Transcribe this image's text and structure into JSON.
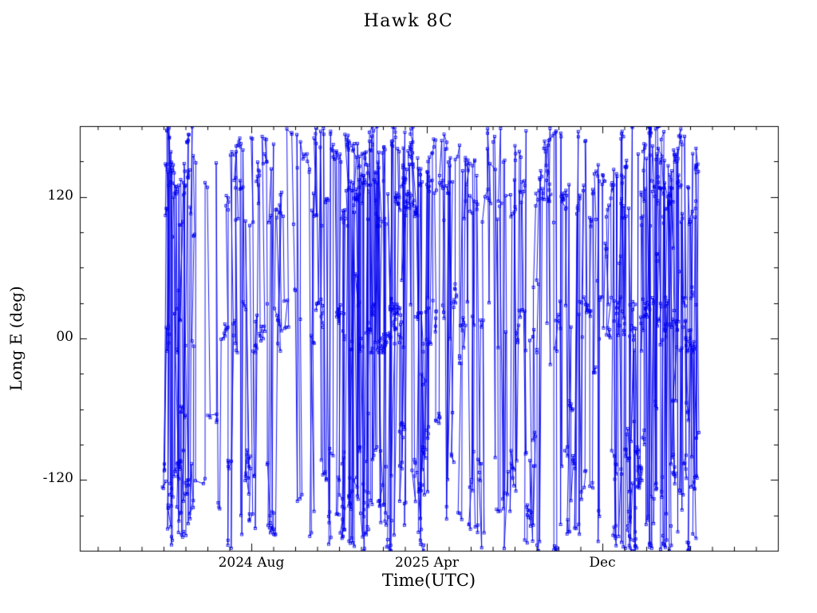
{
  "chart_data": {
    "type": "line",
    "title": "Hawk 8C",
    "xlabel": "Time(UTC)",
    "ylabel": "Long E (deg)",
    "x_tick_labels": [
      "2024 Aug",
      "2025 Apr",
      "Dec"
    ],
    "y_tick_labels": [
      "120",
      "00",
      "-120"
    ],
    "y_tick_values": [
      120,
      0,
      -120
    ],
    "y_minor_step": 30,
    "ylim": [
      -180,
      180
    ],
    "grid": "off",
    "legend": "none",
    "line_color": "#0000ee",
    "marker": "open-square",
    "synthesis": {
      "seed": 7,
      "n_points": 1300,
      "x_start": 0.12,
      "x_end": 0.886,
      "jitter": 0.003,
      "stay_prob": 0.55,
      "walk_step": 7,
      "bands": [
        {
          "y_min": 95,
          "y_max": 180,
          "weight": 0.4
        },
        {
          "y_min": -12,
          "y_max": 35,
          "weight": 0.18
        },
        {
          "y_min": -180,
          "y_max": -92,
          "weight": 0.34
        },
        {
          "y_min": -90,
          "y_max": 95,
          "weight": 0.08
        }
      ],
      "gaps": [
        [
          0.165,
          0.205,
          0.8
        ],
        [
          0.29,
          0.33,
          0.6
        ],
        [
          0.575,
          0.615,
          0.5
        ]
      ],
      "bursts": [
        [
          0.12,
          0.16
        ],
        [
          0.37,
          0.5
        ],
        [
          0.77,
          0.886
        ]
      ]
    }
  }
}
